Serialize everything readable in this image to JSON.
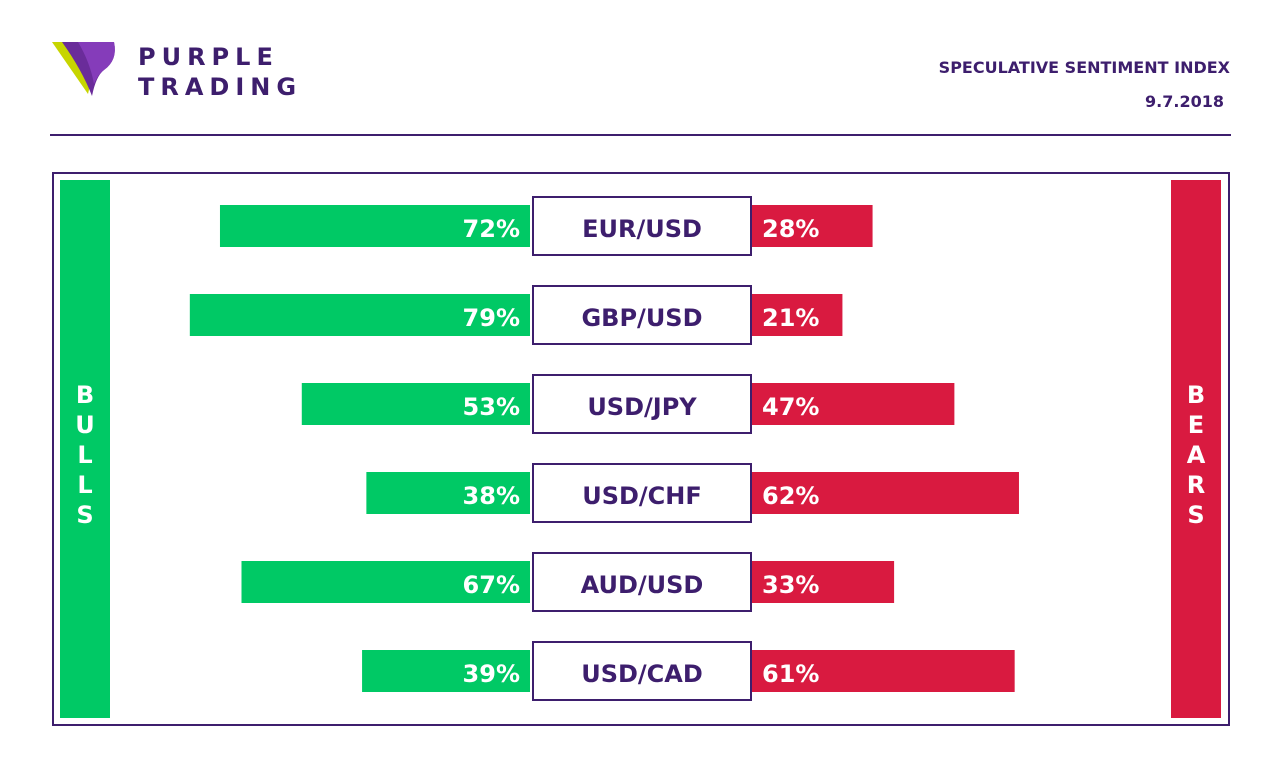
{
  "header": {
    "logo_line1": "PURPLE",
    "logo_line2": "TRADING",
    "title": "SPECULATIVE SENTIMENT INDEX",
    "date": "9.7.2018"
  },
  "sides": {
    "bulls": "BULLS",
    "bears": "BEARS"
  },
  "colors": {
    "brand_purple": "#3d1e6d",
    "bulls_green": "#00c965",
    "bears_red": "#d91a40"
  },
  "chart_data": {
    "type": "bar",
    "categories": [
      "EUR/USD",
      "GBP/USD",
      "USD/JPY",
      "USD/CHF",
      "AUD/USD",
      "USD/CAD"
    ],
    "series": [
      {
        "name": "BULLS",
        "values": [
          72,
          79,
          53,
          38,
          67,
          39
        ]
      },
      {
        "name": "BEARS",
        "values": [
          28,
          21,
          47,
          62,
          33,
          61
        ]
      }
    ],
    "value_suffix": "%",
    "xlim": [
      0,
      100
    ]
  }
}
